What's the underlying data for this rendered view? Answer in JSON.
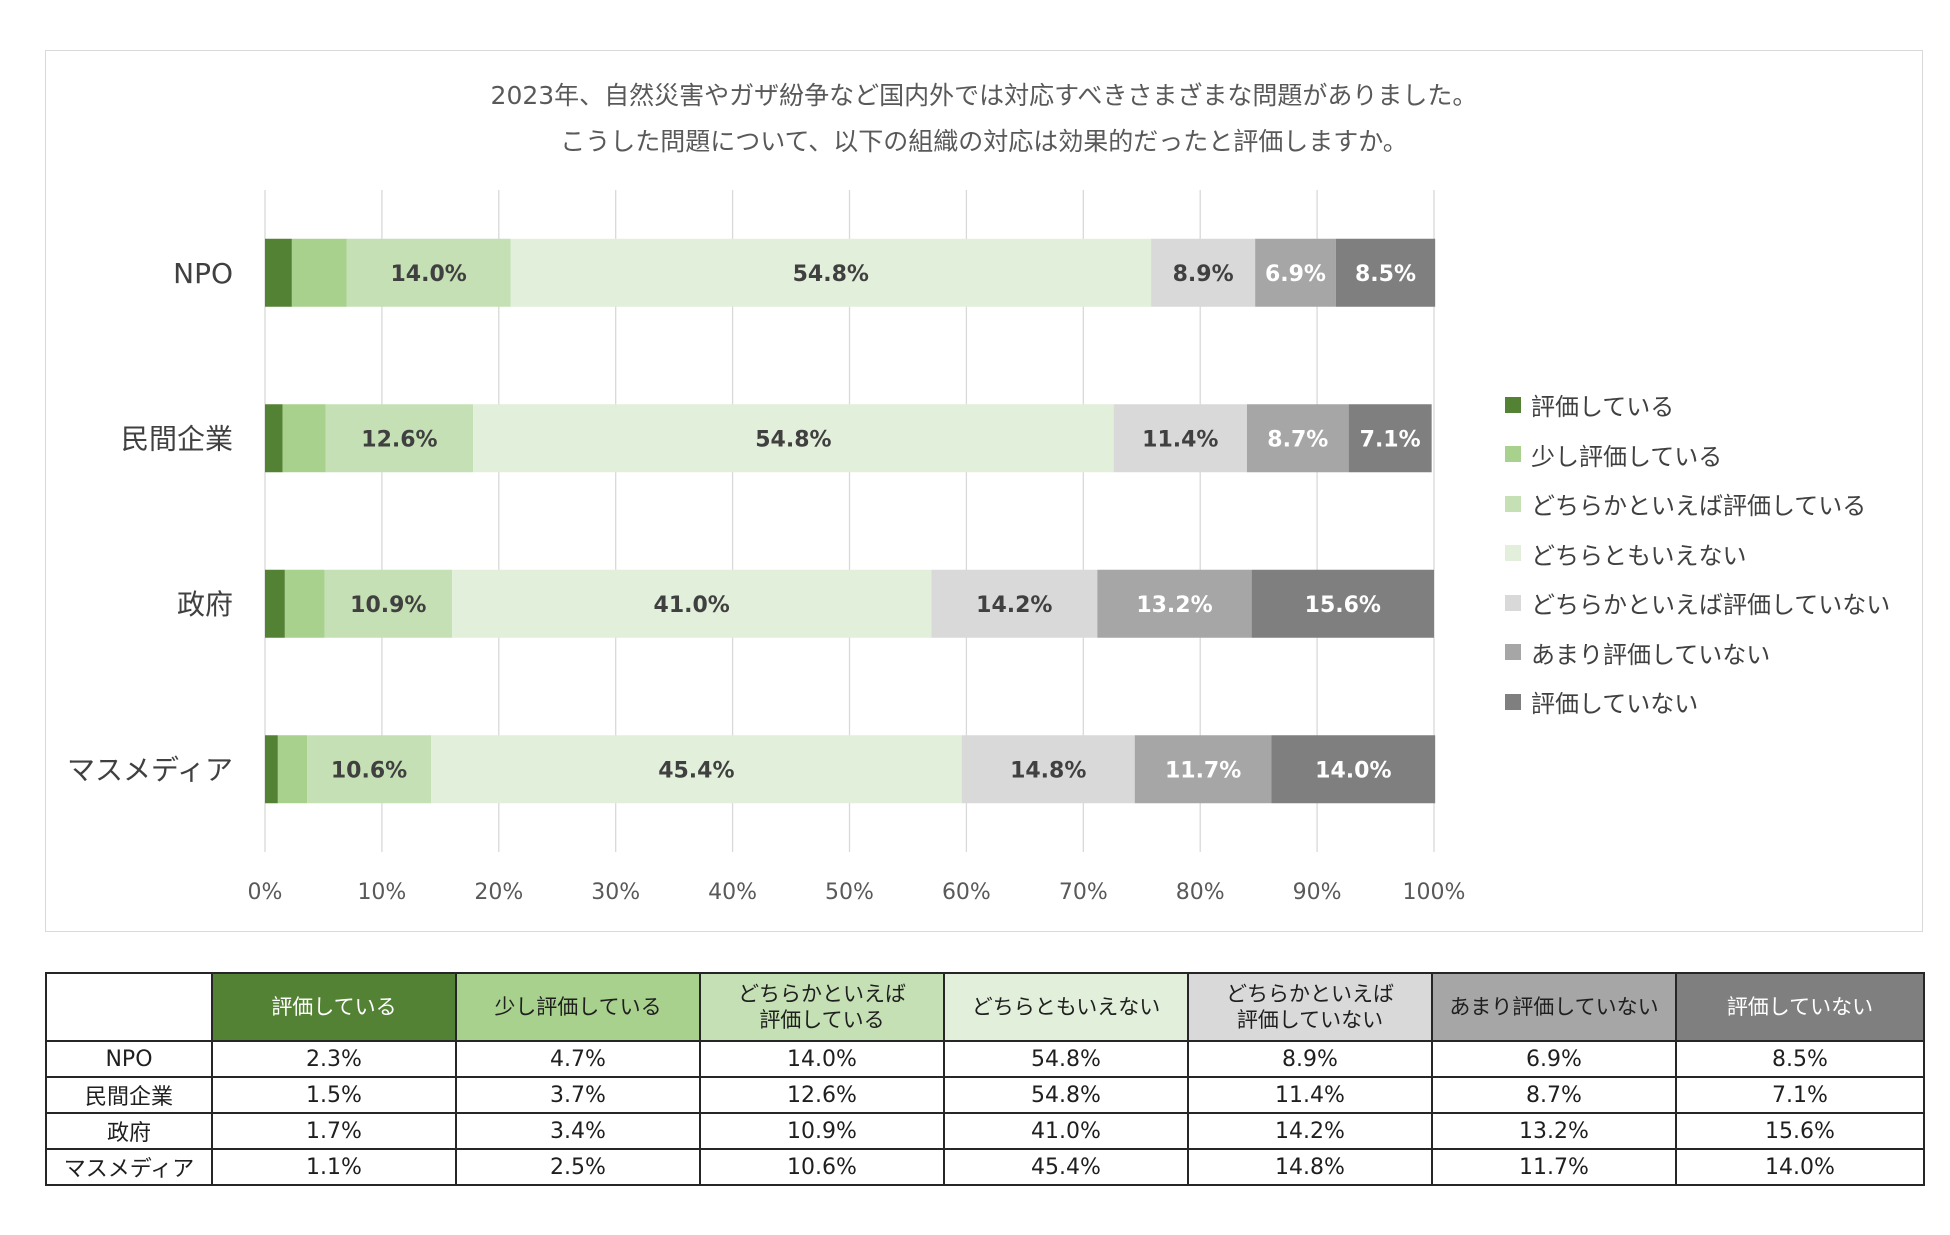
{
  "chart_data": {
    "type": "bar",
    "orientation": "horizontal",
    "stacked": "percent",
    "title": "2023年、自然災害やガザ紛争など国内外では対応すべきさまざまな問題がありました。",
    "subtitle": "こうした問題について、以下の組織の対応は効果的だったと評価しますか。",
    "categories": [
      "NPO",
      "民間企業",
      "政府",
      "マスメディア"
    ],
    "xlim": [
      0,
      100
    ],
    "xticks": [
      "0%",
      "10%",
      "20%",
      "30%",
      "40%",
      "50%",
      "60%",
      "70%",
      "80%",
      "90%",
      "100%"
    ],
    "grid": true,
    "legend_position": "right",
    "label_threshold": 6,
    "series": [
      {
        "name": "評価している",
        "color": "#548235",
        "label_color": "#404040",
        "values": [
          2.3,
          1.5,
          1.7,
          1.1
        ]
      },
      {
        "name": "少し評価している",
        "color": "#a9d18e",
        "label_color": "#404040",
        "values": [
          4.7,
          3.7,
          3.4,
          2.5
        ]
      },
      {
        "name": "どちらかといえば評価している",
        "color": "#c5e0b4",
        "label_color": "#404040",
        "values": [
          14.0,
          12.6,
          10.9,
          10.6
        ]
      },
      {
        "name": "どちらともいえない",
        "color": "#e2efda",
        "label_color": "#404040",
        "values": [
          54.8,
          54.8,
          41.0,
          45.4
        ]
      },
      {
        "name": "どちらかといえば評価していない",
        "color": "#d9d9d9",
        "label_color": "#404040",
        "values": [
          8.9,
          11.4,
          14.2,
          14.8
        ]
      },
      {
        "name": "あまり評価していない",
        "color": "#a6a6a6",
        "label_color": "#ffffff",
        "values": [
          6.9,
          8.7,
          13.2,
          11.7
        ]
      },
      {
        "name": "評価していない",
        "color": "#7f7f7f",
        "label_color": "#ffffff",
        "values": [
          8.5,
          7.1,
          15.6,
          14.0
        ]
      }
    ]
  },
  "table": {
    "headers": [
      {
        "lines": [
          "評価している"
        ],
        "bg": "#548235",
        "fg": "#ffffff"
      },
      {
        "lines": [
          "少し評価している"
        ],
        "bg": "#a9d18e",
        "fg": "#1f1f1f"
      },
      {
        "lines": [
          "どちらかといえば",
          "評価している"
        ],
        "bg": "#c5e0b4",
        "fg": "#1f1f1f"
      },
      {
        "lines": [
          "どちらともいえない"
        ],
        "bg": "#e2efda",
        "fg": "#1f1f1f"
      },
      {
        "lines": [
          "どちらかといえば",
          "評価していない"
        ],
        "bg": "#d9d9d9",
        "fg": "#1f1f1f"
      },
      {
        "lines": [
          "あまり評価していない"
        ],
        "bg": "#a6a6a6",
        "fg": "#1f1f1f"
      },
      {
        "lines": [
          "評価していない"
        ],
        "bg": "#7f7f7f",
        "fg": "#ffffff"
      }
    ],
    "rows": [
      {
        "label": "NPO",
        "cells": [
          "2.3%",
          "4.7%",
          "14.0%",
          "54.8%",
          "8.9%",
          "6.9%",
          "8.5%"
        ]
      },
      {
        "label": "民間企業",
        "cells": [
          "1.5%",
          "3.7%",
          "12.6%",
          "54.8%",
          "11.4%",
          "8.7%",
          "7.1%"
        ]
      },
      {
        "label": "政府",
        "cells": [
          "1.7%",
          "3.4%",
          "10.9%",
          "41.0%",
          "14.2%",
          "13.2%",
          "15.6%"
        ]
      },
      {
        "label": "マスメディア",
        "cells": [
          "1.1%",
          "2.5%",
          "10.6%",
          "45.4%",
          "14.8%",
          "11.7%",
          "14.0%"
        ]
      }
    ]
  }
}
